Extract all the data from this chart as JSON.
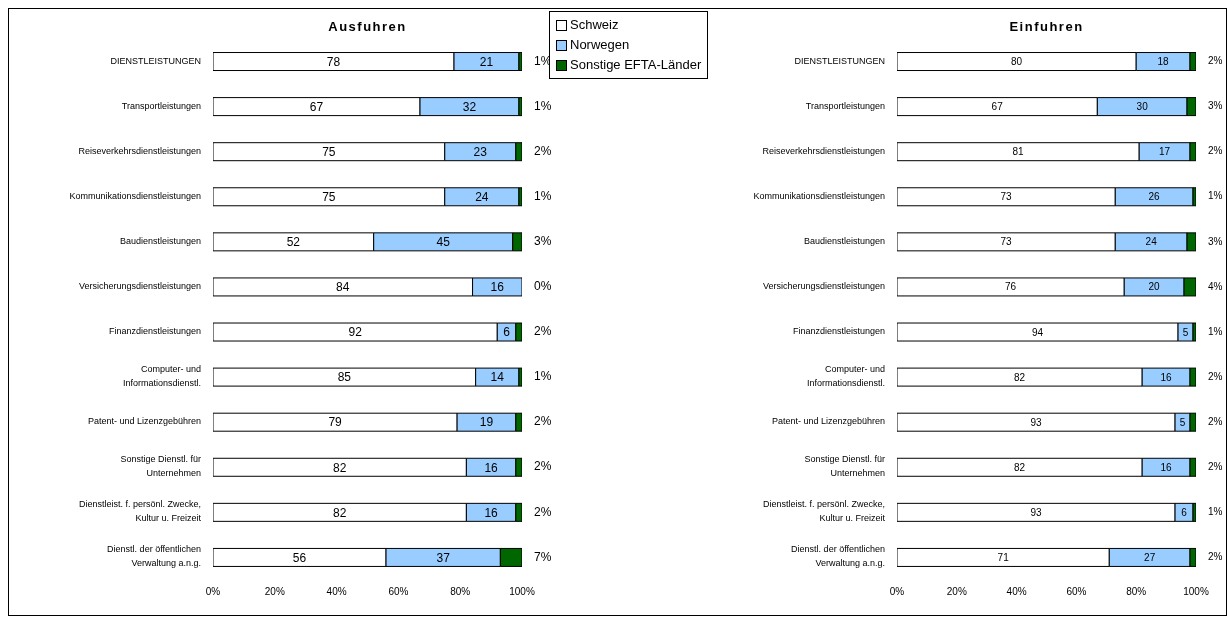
{
  "chart_data": [
    {
      "type": "bar",
      "orientation": "horizontal",
      "stacked": true,
      "title": "Ausfuhren",
      "legend": "top right",
      "grid": false,
      "categories": [
        "DIENSTLEISTUNGEN",
        "Transportleistungen",
        "Reiseverkehrsdienstleistungen",
        "Kommunikationsdienstleistungen",
        "Baudienstleistungen",
        "Versicherungsdienstleistungen",
        "Finanzdienstleistungen",
        "Computer- und Informationsdienstl.",
        "Patent- und Lizenzgebühren",
        "Sonstige Dienstl. für Unternehmen",
        "Dienstleist. f. persönl. Zwecke, Kultur u. Freizeit",
        "Dienstl. der öffentlichen Verwaltung a.n.g."
      ],
      "xlim": [
        0,
        100
      ],
      "xticks": [
        {
          "value": 0,
          "label": "0%"
        },
        {
          "value": 20,
          "label": "20%"
        },
        {
          "value": 40,
          "label": "40%"
        },
        {
          "value": 60,
          "label": "60%"
        },
        {
          "value": 80,
          "label": "80%"
        },
        {
          "value": 100,
          "label": "100%"
        }
      ],
      "series": [
        {
          "name": "Schweiz",
          "color": "#ffffff",
          "values": [
            78,
            67,
            75,
            75,
            52,
            84,
            92,
            85,
            79,
            82,
            82,
            56
          ],
          "value_labels": [
            "78",
            "67",
            "75",
            "75",
            "52",
            "84",
            "92",
            "85",
            "79",
            "82",
            "82",
            "56"
          ]
        },
        {
          "name": "Norwegen",
          "color": "#99ccff",
          "values": [
            21,
            32,
            23,
            24,
            45,
            16,
            6,
            14,
            19,
            16,
            16,
            37
          ],
          "value_labels": [
            "21",
            "32",
            "23",
            "24",
            "45",
            "16",
            "6",
            "14",
            "19",
            "16",
            "16",
            "37"
          ]
        },
        {
          "name": "Sonstige EFTA-Länder",
          "color": "#006600",
          "values": [
            1,
            1,
            2,
            1,
            3,
            0,
            2,
            1,
            2,
            2,
            2,
            7
          ],
          "value_labels": [
            "1%",
            "1%",
            "2%",
            "1%",
            "3%",
            "0%",
            "2%",
            "1%",
            "2%",
            "2%",
            "2%",
            "7%"
          ]
        }
      ]
    },
    {
      "type": "bar",
      "orientation": "horizontal",
      "stacked": true,
      "title": "Einfuhren",
      "grid": false,
      "categories": [
        "DIENSTLEISTUNGEN",
        "Transportleistungen",
        "Reiseverkehrsdienstleistungen",
        "Kommunikationsdienstleistungen",
        "Baudienstleistungen",
        "Versicherungsdienstleistungen",
        "Finanzdienstleistungen",
        "Computer- und Informationsdienstl.",
        "Patent- und Lizenzgebühren",
        "Sonstige Dienstl. für Unternehmen",
        "Dienstleist. f. persönl. Zwecke, Kultur u. Freizeit",
        "Dienstl. der öffentlichen Verwaltung a.n.g."
      ],
      "xlim": [
        0,
        100
      ],
      "xticks": [
        {
          "value": 0,
          "label": "0%"
        },
        {
          "value": 20,
          "label": "20%"
        },
        {
          "value": 40,
          "label": "40%"
        },
        {
          "value": 60,
          "label": "60%"
        },
        {
          "value": 80,
          "label": "80%"
        },
        {
          "value": 100,
          "label": "100%"
        }
      ],
      "series": [
        {
          "color": "#ffffff",
          "values": [
            80,
            67,
            81,
            73,
            73,
            76,
            94,
            82,
            93,
            82,
            93,
            71
          ],
          "value_labels": [
            "80",
            "67",
            "81",
            "73",
            "73",
            "76",
            "94",
            "82",
            "93",
            "82",
            "93",
            "71"
          ]
        },
        {
          "color": "#99ccff",
          "values": [
            18,
            30,
            17,
            26,
            24,
            20,
            5,
            16,
            5,
            16,
            6,
            27
          ],
          "value_labels": [
            "18",
            "30",
            "17",
            "26",
            "24",
            "20",
            "5",
            "16",
            "5",
            "16",
            "6",
            "27"
          ]
        },
        {
          "color": "#006600",
          "values": [
            2,
            3,
            2,
            1,
            3,
            4,
            1,
            2,
            2,
            2,
            1,
            2
          ],
          "value_labels": [
            "2%",
            "3%",
            "2%",
            "1%",
            "3%",
            "4%",
            "1%",
            "2%",
            "2%",
            "2%",
            "1%",
            "2%"
          ]
        }
      ]
    }
  ]
}
